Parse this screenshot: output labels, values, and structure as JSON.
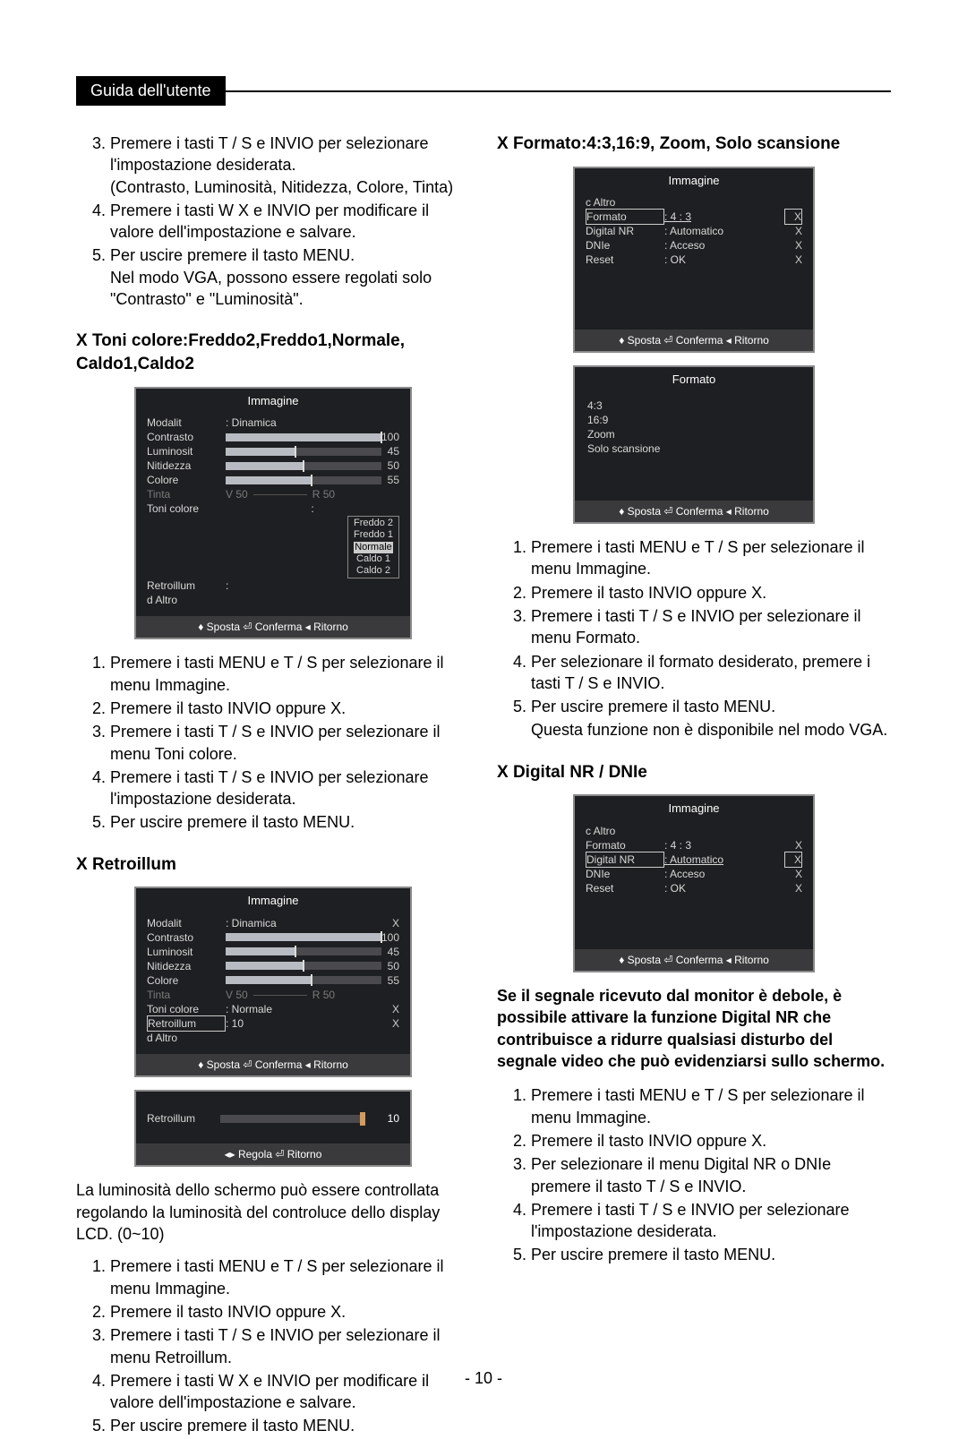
{
  "header": {
    "tag": "Guida dell'utente"
  },
  "page_number": "- 10 -",
  "left": {
    "intro_list": [
      {
        "n": 3,
        "lines": [
          "Premere i tasti  T / S  e INVIO per selezionare l'impostazione desiderata.",
          "(Contrasto, Luminosità, Nitidezza, Colore, Tinta)"
        ]
      },
      {
        "n": 4,
        "lines": [
          "Premere i tasti  W X e INVIO per modificare il valore dell'impostazione e salvare."
        ]
      },
      {
        "n": 5,
        "lines": [
          "Per uscire premere il tasto MENU.",
          "Nel modo VGA, possono essere regolati solo \"Contrasto\" e \"Luminosità\"."
        ]
      }
    ],
    "sec1": {
      "title": "X   Toni colore:Freddo2,Freddo1,Normale, Caldo1,Caldo2",
      "menu": {
        "title": "Immagine",
        "rows_labeled": [
          {
            "k": "Modalit",
            "v": ": Dinamica"
          }
        ],
        "rows_bar": [
          {
            "k": "Contrasto",
            "val": "100",
            "pct": 100
          },
          {
            "k": "Luminosit",
            "val": "45",
            "pct": 45
          },
          {
            "k": "Nitidezza",
            "val": "50",
            "pct": 50
          },
          {
            "k": "Colore",
            "val": "55",
            "pct": 55
          }
        ],
        "tinta": {
          "k": "Tinta",
          "left": "V 50",
          "right": "R    50",
          "pct": 50
        },
        "toni_items": [
          "Freddo 2",
          "Freddo 1",
          "Normale",
          "Caldo 1",
          "Caldo 2"
        ],
        "toni_label": "Toni colore",
        "retro_label": "Retroillum",
        "altro": "d Altro",
        "foot": "♦ Sposta   ⏎ Conferma  ◂ Ritorno"
      },
      "steps": [
        "Premere i tasti MENU e  T / S  per selezionare il menu Immagine.",
        "Premere il tasto INVIO oppure  X.",
        "Premere i tasti  T / S  e INVIO per selezionare il menu Toni colore.",
        "Premere i tasti  T / S  e INVIO per selezionare l'impostazione desiderata.",
        "Per uscire premere il tasto MENU."
      ]
    },
    "sec2": {
      "title": "X   Retroillum",
      "menu": {
        "title": "Immagine",
        "rows_labeled": [
          {
            "k": "Modalit",
            "v": ": Dinamica",
            "x": "X"
          }
        ],
        "rows_bar": [
          {
            "k": "Contrasto",
            "val": "100",
            "pct": 100
          },
          {
            "k": "Luminosit",
            "val": "45",
            "pct": 45
          },
          {
            "k": "Nitidezza",
            "val": "50",
            "pct": 50
          },
          {
            "k": "Colore",
            "val": "55",
            "pct": 55
          }
        ],
        "tinta": {
          "k": "Tinta",
          "left": "V 50",
          "right": "R    50",
          "pct": 50
        },
        "toni_label": "Toni colore",
        "toni_val": ": Normale",
        "toni_x": "X",
        "retro_label": "Retroillum",
        "retro_val": ": 10",
        "retro_x": "X",
        "altro": "d Altro",
        "foot": "♦ Sposta   ⏎ Conferma  ◂ Ritorno"
      },
      "slider": {
        "label": "Retroillum",
        "value": "10",
        "foot": "◂▸ Regola    ⏎ Ritorno"
      },
      "blurb": "La luminosità dello schermo può essere controllata regolando la luminosità del controluce dello display LCD. (0~10)",
      "steps": [
        "Premere i tasti MENU e  T / S  per selezionare il menu Immagine.",
        "Premere il tasto INVIO oppure  X.",
        "Premere i tasti  T / S  e INVIO per selezionare il menu Retroillum.",
        "Premere i tasti  W X e INVIO per modificare il valore dell'impostazione e salvare.",
        "Per uscire premere il tasto MENU."
      ]
    }
  },
  "right": {
    "sec1": {
      "title": "X   Formato:4:3,16:9, Zoom, Solo scansione",
      "menu": {
        "title": "Immagine",
        "back": "c Altro",
        "rows": [
          {
            "k": "Formato",
            "v": ": 4 : 3",
            "x": "X",
            "sel": true
          },
          {
            "k": "Digital NR",
            "v": ": Automatico",
            "x": "X"
          },
          {
            "k": "DNIe",
            "v": ": Acceso",
            "x": "X"
          },
          {
            "k": "Reset",
            "v": ": OK",
            "x": "X"
          }
        ],
        "foot": "♦ Sposta   ⏎ Conferma  ◂ Ritorno"
      },
      "formato_menu": {
        "title": "Formato",
        "items": [
          "4:3",
          "16:9",
          "Zoom",
          "Solo scansione"
        ],
        "foot": "♦ Sposta   ⏎ Conferma  ◂ Ritorno"
      },
      "steps": [
        "Premere i tasti MENU e  T / S  per selezionare il menu Immagine.",
        "Premere il tasto INVIO oppure  X.",
        "Premere i tasti  T / S  e INVIO per selezionare il menu Formato.",
        "Per selezionare il formato desiderato, premere i tasti  T / S  e INVIO.",
        "Per uscire premere il tasto MENU."
      ],
      "extra": "Questa funzione non è disponibile nel modo VGA."
    },
    "sec2": {
      "title": "X   Digital NR / DNIe",
      "menu": {
        "title": "Immagine",
        "back": "c Altro",
        "rows": [
          {
            "k": "Formato",
            "v": ": 4 : 3",
            "x": "X"
          },
          {
            "k": "Digital NR",
            "v": ": Automatico",
            "x": "X",
            "sel": true
          },
          {
            "k": "DNIe",
            "v": ": Acceso",
            "x": "X"
          },
          {
            "k": "Reset",
            "v": ": OK",
            "x": "X"
          }
        ],
        "foot": "♦ Sposta   ⏎ Conferma  ◂ Ritorno"
      },
      "note": "Se il segnale ricevuto dal monitor è debole, è possibile attivare la funzione Digital NR che contribuisce a ridurre qualsiasi disturbo del segnale video che può evidenziarsi sullo schermo.",
      "steps": [
        "Premere i tasti MENU e  T / S  per selezionare il menu Immagine.",
        "Premere il tasto INVIO oppure  X.",
        "Per selezionare il menu Digital NR o DNIe premere il tasto  T / S  e INVIO.",
        "Premere i tasti  T / S  e INVIO per selezionare l'impostazione desiderata.",
        "Per uscire premere il tasto MENU."
      ]
    }
  }
}
